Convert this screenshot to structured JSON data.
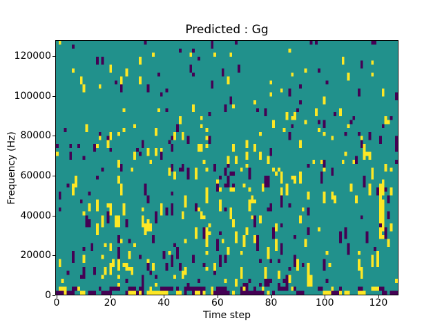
{
  "title": "Predicted : Gg",
  "axes": {
    "xlabel": "Time step",
    "ylabel": "Frequency (Hz)",
    "xticks": [
      0,
      20,
      40,
      60,
      80,
      100,
      120
    ],
    "yticks": [
      0,
      20000,
      40000,
      60000,
      80000,
      100000,
      120000
    ],
    "x_range": [
      -0.5,
      127.5
    ],
    "y_range": [
      0,
      128000
    ]
  },
  "chart_data": {
    "type": "heatmap",
    "title": "Predicted : Gg",
    "xlabel": "Time step",
    "ylabel": "Frequency (Hz)",
    "x_range": [
      0,
      128
    ],
    "y_range_hz": [
      0,
      128000
    ],
    "grid": {
      "cols": 128,
      "rows": 64,
      "freq_per_row_hz": 2000
    },
    "colormap": {
      "0": "#440154",
      "1": "#21918c",
      "2": "#fde725"
    },
    "background_value": 1,
    "legend": "none",
    "grid_lines": false,
    "generation": {
      "note": "values estimated from pixels: 1=teal background, sparse vertical runs of 0 (purple) and 2 (yellow); dense mixed band at bottom rows",
      "seed": 7,
      "bands": [
        {
          "rows": [
            0,
            1
          ],
          "p_start": 0.1,
          "max_run": 2,
          "yellow_ratio": 0.45
        },
        {
          "rows": [
            2,
            11
          ],
          "p_start": 0.075,
          "max_run": 3,
          "yellow_ratio": 0.5
        },
        {
          "rows": [
            12,
            29
          ],
          "p_start": 0.06,
          "max_run": 3,
          "yellow_ratio": 0.55
        },
        {
          "rows": [
            30,
            45
          ],
          "p_start": 0.055,
          "max_run": 2,
          "yellow_ratio": 0.55
        },
        {
          "rows": [
            46,
            55
          ],
          "p_start": 0.035,
          "max_run": 2,
          "yellow_ratio": 0.5
        },
        {
          "rows": [
            56,
            63
          ],
          "p_start": 0.03,
          "max_run": 2,
          "yellow_ratio": 0.5
        }
      ],
      "bottom_blobs": {
        "rows_list": [
          0,
          1
        ],
        "p_start": 0.28,
        "max_run": 3,
        "yellow_ratio": 0.45
      },
      "features": [
        {
          "cols": [
            121,
            122
          ],
          "rows": [
            13,
            28
          ],
          "value": 2,
          "density": 0.7
        },
        {
          "cols": [
            56,
            56
          ],
          "rows": [
            5,
            44
          ],
          "value": 2,
          "density": 0.35
        },
        {
          "cols": [
            63,
            66
          ],
          "rows": [
            27,
            32
          ],
          "value": 0,
          "density": 0.45
        },
        {
          "cols": [
            127,
            127
          ],
          "rows": [
            33,
            39
          ],
          "value": 0,
          "density": 0.7
        },
        {
          "cols": [
            78,
            80
          ],
          "rows": [
            1,
            3
          ],
          "value": 0,
          "density": 0.6
        },
        {
          "cols": [
            118,
            118
          ],
          "rows": [
            54,
            58
          ],
          "value": 2,
          "density": 0.6
        }
      ]
    }
  }
}
